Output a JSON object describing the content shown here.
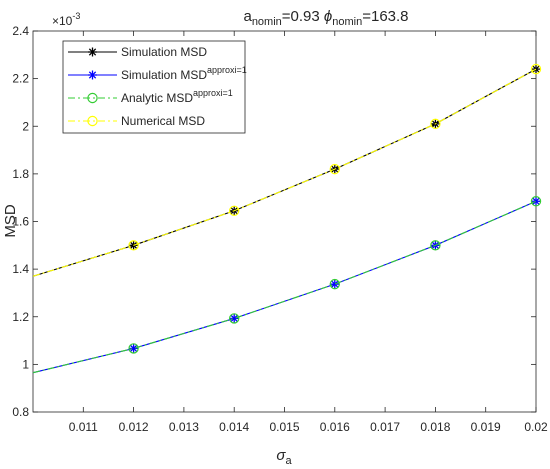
{
  "chart_data": {
    "type": "line",
    "title": {
      "a_base": "a",
      "a_sub": "nomin",
      "a_value": "=0.93 ",
      "phi_base": "ϕ",
      "phi_sub": "nomin",
      "phi_value": "=163.8"
    },
    "xlabel": {
      "base": "σ",
      "sub": "a"
    },
    "ylabel": "MSD",
    "y_multiplier": "×10",
    "y_multiplier_exp": "-3",
    "xlim": [
      0.01,
      0.02
    ],
    "ylim": [
      0.8,
      2.4
    ],
    "x_ticks": [
      0.011,
      0.012,
      0.013,
      0.014,
      0.015,
      0.016,
      0.017,
      0.018,
      0.019,
      0.02
    ],
    "x_tick_labels": [
      "0.011",
      "0.012",
      "0.013",
      "0.014",
      "0.015",
      "0.016",
      "0.017",
      "0.018",
      "0.019",
      "0.02"
    ],
    "y_ticks": [
      0.8,
      1.0,
      1.2,
      1.4,
      1.6,
      1.8,
      2.0,
      2.2,
      2.4
    ],
    "y_tick_labels": [
      "0.8",
      "1",
      "1.2",
      "1.4",
      "1.6",
      "1.8",
      "2",
      "2.2",
      "2.4"
    ],
    "grid": false,
    "legend_position": "top-left",
    "series": [
      {
        "name": "Simulation MSD",
        "name_sup": "",
        "color": "#000000",
        "line_style": "solid",
        "marker": "asterisk",
        "marker_color": "#000000",
        "x": [
          0.01,
          0.012,
          0.014,
          0.016,
          0.018,
          0.02
        ],
        "y": [
          1.37,
          1.5,
          1.645,
          1.82,
          2.01,
          2.24
        ]
      },
      {
        "name": "Simulation MSD",
        "name_sup": "approxi=1",
        "color": "#0000ff",
        "line_style": "solid",
        "marker": "asterisk",
        "marker_color": "#0000ff",
        "x": [
          0.01,
          0.012,
          0.014,
          0.016,
          0.018,
          0.02
        ],
        "y": [
          0.965,
          1.067,
          1.193,
          1.337,
          1.5,
          1.685
        ]
      },
      {
        "name": "Analytic MSD",
        "name_sup": "approxi=1",
        "color": "#33cc33",
        "line_style": "dashdot",
        "marker": "circle",
        "marker_color": "#33cc33",
        "x": [
          0.01,
          0.012,
          0.014,
          0.016,
          0.018,
          0.02
        ],
        "y": [
          0.965,
          1.067,
          1.193,
          1.337,
          1.5,
          1.685
        ]
      },
      {
        "name": "Numerical MSD",
        "name_sup": "",
        "color": "#ffff00",
        "line_style": "dashdot",
        "marker": "circle",
        "marker_color": "#ffff00",
        "x": [
          0.01,
          0.012,
          0.014,
          0.016,
          0.018,
          0.02
        ],
        "y": [
          1.37,
          1.5,
          1.645,
          1.82,
          2.01,
          2.24
        ]
      }
    ]
  }
}
